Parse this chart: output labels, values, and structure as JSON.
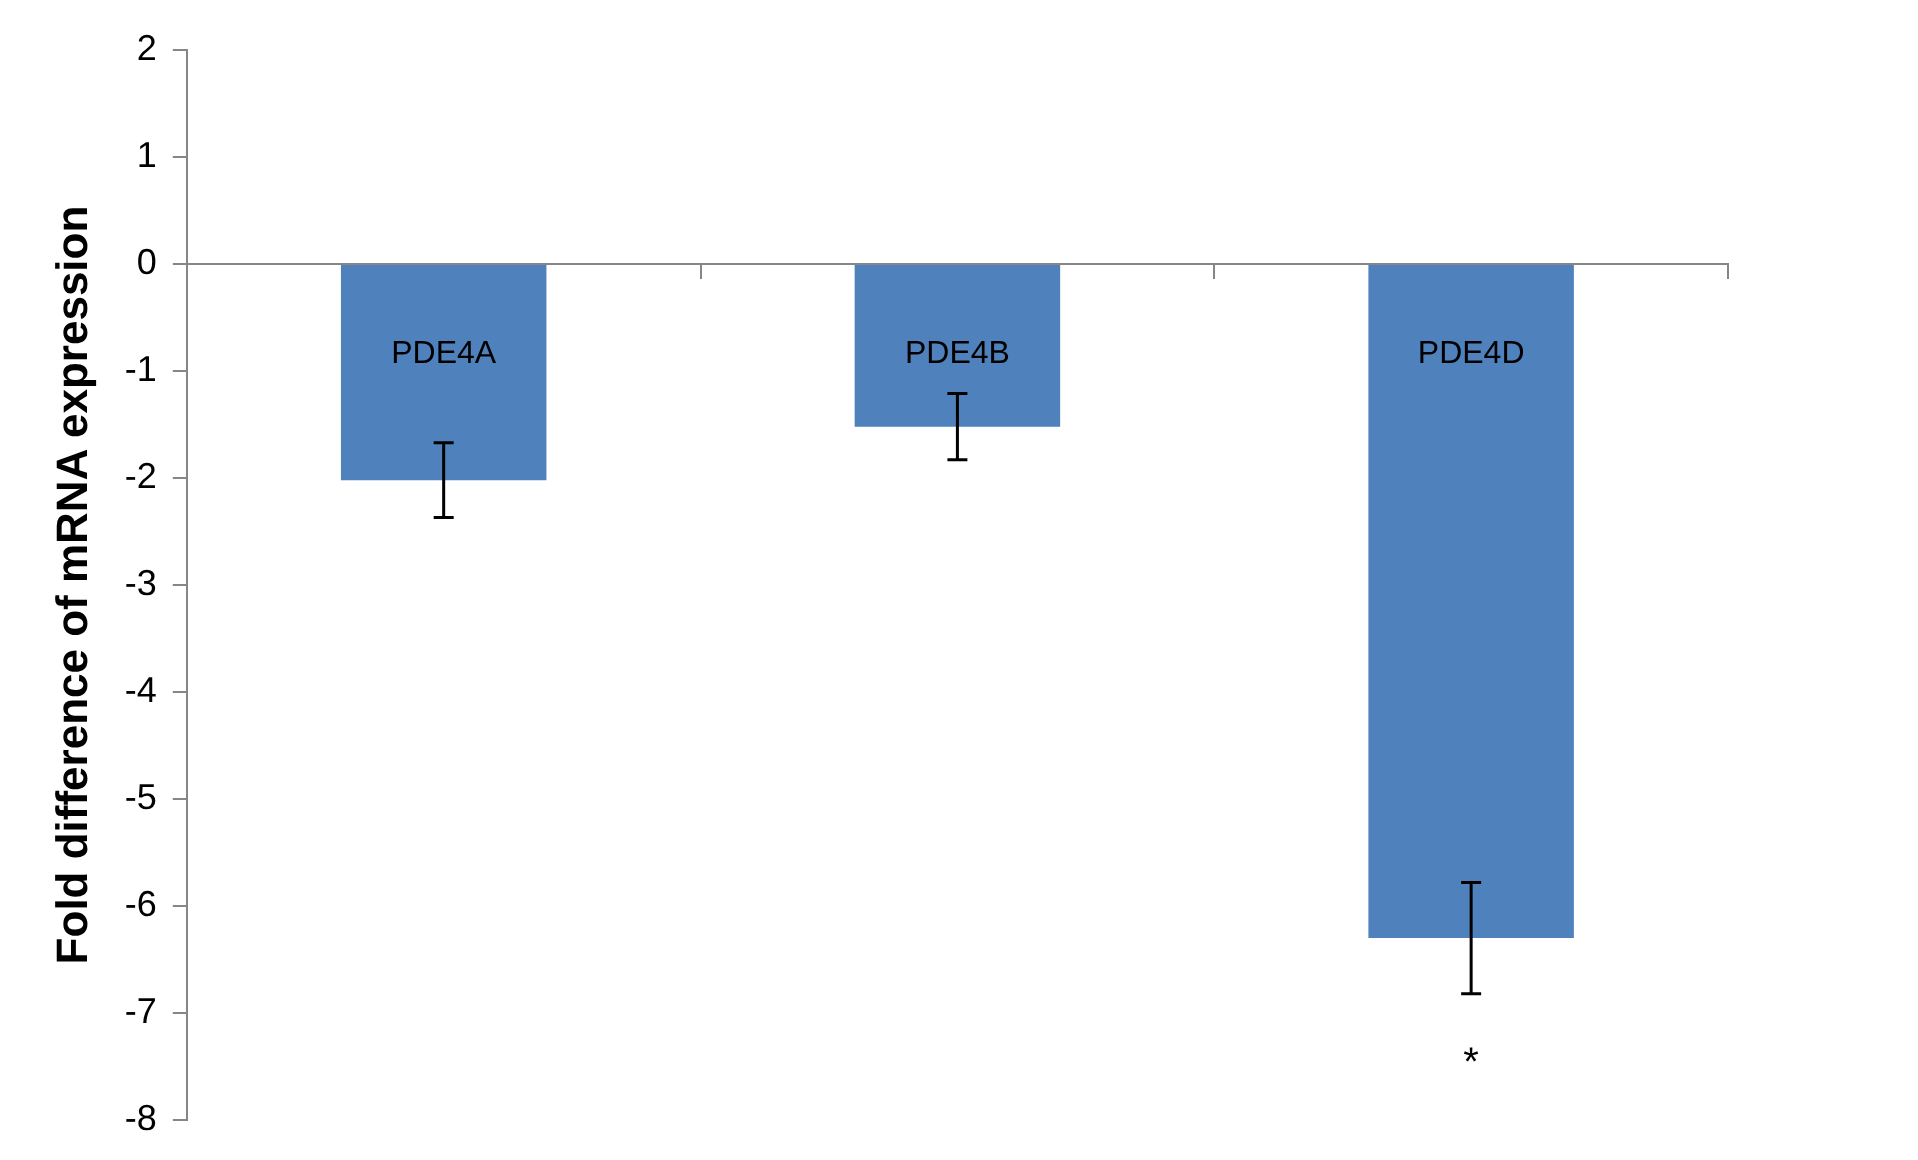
{
  "chart_data": {
    "type": "bar",
    "ylabel": "Fold difference of mRNA expression",
    "categories": [
      "PDE4A",
      "PDE4B",
      "PDE4D"
    ],
    "values": [
      -2.02,
      -1.52,
      -6.3
    ],
    "errors": [
      0.35,
      0.31,
      0.52
    ],
    "color": "#4f81bd",
    "ylim": [
      -8,
      2
    ],
    "yticks": [
      -8,
      -7,
      -6,
      -5,
      -4,
      -3,
      -2,
      -1,
      0,
      1,
      2
    ],
    "grid": false,
    "legend": false,
    "annotations": [
      "*"
    ]
  }
}
